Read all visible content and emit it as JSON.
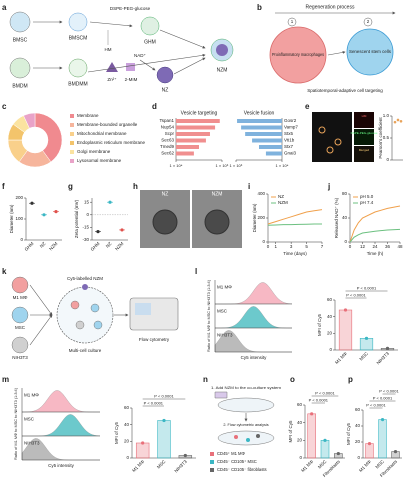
{
  "panel_labels": [
    "a",
    "b",
    "c",
    "d",
    "e",
    "f",
    "g",
    "h",
    "i",
    "j",
    "k",
    "l",
    "m",
    "n",
    "o",
    "p"
  ],
  "a": {
    "bmsc": "BMSC",
    "bmscm": "BMSCM",
    "dspe": "DSPE-PEG-glucose",
    "hm": "HM",
    "ghm": "GHM",
    "bmdm": "BMDM",
    "bmdmm": "BMDMM",
    "zn": "Zn²⁺",
    "mim": "2-MIM",
    "nad": "NAD⁺",
    "nz": "NZ",
    "nzm": "NZM"
  },
  "b": {
    "title": "Regeneration process",
    "step1": "1",
    "step2": "2",
    "macro": "Proinflammatory macrophages",
    "stem": "Senescent stem cells",
    "caption": "Spatiotemporal-adaptive cell targeting"
  },
  "c": {
    "type": "pie",
    "categories": [
      "Membrane",
      "Membrane-bounded organelle",
      "Mitochondrial membrane",
      "Endoplasmic reticulum membrane",
      "Golgi membrane",
      "Lysosomal membrane"
    ],
    "values": [
      40,
      20,
      15,
      10,
      8,
      7
    ],
    "colors": [
      "#f08a8f",
      "#f6b59c",
      "#f9d08b",
      "#f3c46b",
      "#fbe3a0",
      "#e9a3c8"
    ]
  },
  "d": {
    "type": "bar",
    "orientation": "horizontal",
    "log_scale": true,
    "xlim": [
      10000,
      1000000
    ],
    "xticks": [
      {
        "value": 10000,
        "label": "1 × 10⁴"
      },
      {
        "value": 1000000,
        "label": "1 × 10⁶"
      }
    ],
    "panels": [
      {
        "title": "Vesicle targeting",
        "categories": [
          "Tspan1",
          "Nup54",
          "Scpr",
          "Sec63",
          "Tmed9",
          "Sec62"
        ],
        "values": [
          800000,
          500000,
          300000,
          200000,
          100000,
          60000
        ],
        "color": "#f08f8f"
      },
      {
        "title": "Vesicle fusion",
        "categories": [
          "Gosr2",
          "Vamp7",
          "Stx5",
          "Vti1b",
          "Stx7",
          "Gnai3"
        ],
        "values": [
          900000,
          600000,
          400000,
          200000,
          100000,
          50000
        ],
        "color": "#7fb2dd"
      }
    ]
  },
  "e": {
    "images": [
      "HM",
      "DSPE-PEG-glucose",
      "Merged"
    ],
    "type": "scatter",
    "ylabel": "Pearson's coefficient",
    "values": [
      0.86,
      0.91,
      0.88
    ],
    "ylim": [
      0,
      1
    ],
    "yticks": [
      0,
      0.5,
      {
        "value": 1,
        "label": "1.0"
      }
    ],
    "color": "#e8a35a"
  },
  "f": {
    "type": "dot",
    "ylabel": "Diameter (nm)",
    "categories": [
      "GHM",
      "NZ",
      "NZM"
    ],
    "values": [
      175,
      120,
      135
    ],
    "colors": [
      "#333333",
      "#3bb7c4",
      "#e0524d"
    ],
    "ylim": [
      0,
      200
    ],
    "yticks": [
      0,
      100,
      200
    ]
  },
  "g": {
    "type": "dot",
    "ylabel": "Zeta potential (mV)",
    "categories": [
      "GHM",
      "NZ",
      "NZM"
    ],
    "values": [
      -20,
      15,
      -18
    ],
    "colors": [
      "#333333",
      "#3bb7c4",
      "#e0524d"
    ],
    "ylim": [
      -30,
      20
    ],
    "yticks": [
      -30,
      -15,
      0,
      15
    ],
    "zero_line": true
  },
  "h": {
    "images": [
      "NZ",
      "NZM"
    ]
  },
  "i": {
    "type": "line",
    "xlabel": "Time (days)",
    "ylabel": "Diameter (nm)",
    "x": [
      0,
      1,
      2,
      3,
      4,
      5,
      6,
      7
    ],
    "series": [
      {
        "name": "NZ",
        "color": "#f0a04b",
        "values": [
          150,
          170,
          190,
          210,
          230,
          250,
          260,
          270
        ]
      },
      {
        "name": "NZM",
        "color": "#6cc080",
        "values": [
          140,
          142,
          145,
          145,
          147,
          148,
          150,
          150
        ]
      }
    ],
    "xlim": [
      0,
      7
    ],
    "xticks": [
      0,
      1,
      3,
      5,
      7
    ],
    "ylim": [
      0,
      400
    ],
    "yticks": [
      0,
      200,
      400
    ]
  },
  "j": {
    "type": "line",
    "xlabel": "Time (h)",
    "ylabel": "Released NAD⁺ (%)",
    "x": [
      0,
      4,
      8,
      12,
      24,
      36,
      48
    ],
    "series": [
      {
        "name": "pH 5.0",
        "color": "#f0a04b",
        "values": [
          0,
          20,
          32,
          40,
          50,
          56,
          60
        ]
      },
      {
        "name": "pH 7.4",
        "color": "#6cc080",
        "values": [
          0,
          8,
          12,
          15,
          18,
          20,
          21
        ]
      }
    ],
    "xlim": [
      0,
      48
    ],
    "xticks": [
      0,
      12,
      24,
      36,
      48
    ],
    "ylim": [
      0,
      80
    ],
    "yticks": [
      0,
      40,
      80
    ]
  },
  "k": {
    "m1": "M1 MΦ",
    "msc": "MSC",
    "nih": "NIH3T3",
    "culture": "Multi-cell culture",
    "nzm": "Cy5-labelled NZM",
    "flow": "Flow cytometry"
  },
  "l": {
    "histogram": {
      "ylabel": "Ratio of M1 MΦ to MSC to NIH3T3 (1:3:4)",
      "xlabel": "Cy5 intensity",
      "rows": [
        "M1 MΦ",
        "MSC",
        "NIH3T3"
      ],
      "colors": [
        "#f7b8c4",
        "#6cc9cc",
        "#bbbbbb"
      ]
    },
    "chart": {
      "type": "bar",
      "ylabel": "MFI of Cy5",
      "categories": [
        "M1 MΦ",
        "MSC",
        "NIH3T3"
      ],
      "values": [
        48,
        14,
        2
      ],
      "colors": [
        "#e8707a",
        "#3bb7c4",
        "#666666"
      ],
      "ylim": [
        0,
        60
      ],
      "yticks": [
        0,
        20,
        40,
        60
      ],
      "annotations": [
        "P < 0.0001",
        "P < 0.0001"
      ]
    }
  },
  "m": {
    "histogram": {
      "ylabel": "Ratio of M1 MΦ to MSC to NIH3T3 (1:3:4)",
      "xlabel": "Cy5 intensity",
      "rows": [
        "M1 MΦ",
        "MSC",
        "NIH3T3"
      ],
      "colors": [
        "#f7b8c4",
        "#6cc9cc",
        "#bbbbbb"
      ]
    },
    "chart": {
      "type": "bar",
      "ylabel": "MFI of Cy5",
      "categories": [
        "M1 MΦ",
        "MSC",
        "NIH3T3"
      ],
      "values": [
        18,
        45,
        3
      ],
      "colors": [
        "#e8707a",
        "#3bb7c4",
        "#666666"
      ],
      "ylim": [
        0,
        60
      ],
      "yticks": [
        0,
        20,
        40,
        60
      ],
      "annotations": [
        "P < 0.0001",
        "P < 0.0001"
      ]
    }
  },
  "n": {
    "step1": "1. Add NZM to the co-culture system",
    "step2": "2. Flow cytometric analysis",
    "legend": [
      "CD45⁺ M1 MΦ",
      "CD45⁻ CD105⁺ MSC",
      "CD45⁻ CD105⁻ fibroblasts"
    ],
    "colors": [
      "#e8707a",
      "#3bb7c4",
      "#666666"
    ]
  },
  "o": {
    "type": "bar",
    "ylabel": "MFI of Cy5",
    "categories": [
      "M1 MΦ",
      "MSC",
      "Fibroblasts"
    ],
    "values": [
      50,
      20,
      5
    ],
    "colors": [
      "#e8707a",
      "#3bb7c4",
      "#666666"
    ],
    "ylim": [
      0,
      60
    ],
    "yticks": [
      0,
      20,
      40,
      60
    ],
    "annotations": [
      "P < 0.0001",
      "P < 0.0001"
    ]
  },
  "p": {
    "type": "bar",
    "ylabel": "MFI of Cy5",
    "categories": [
      "M1 MΦ",
      "MSC",
      "Fibroblasts"
    ],
    "values": [
      18,
      48,
      8
    ],
    "colors": [
      "#e8707a",
      "#3bb7c4",
      "#666666"
    ],
    "ylim": [
      0,
      60
    ],
    "yticks": [
      0,
      20,
      40,
      60
    ],
    "annotations": [
      "P < 0.0001",
      "P < 0.0001",
      "P < 0.0001"
    ]
  }
}
